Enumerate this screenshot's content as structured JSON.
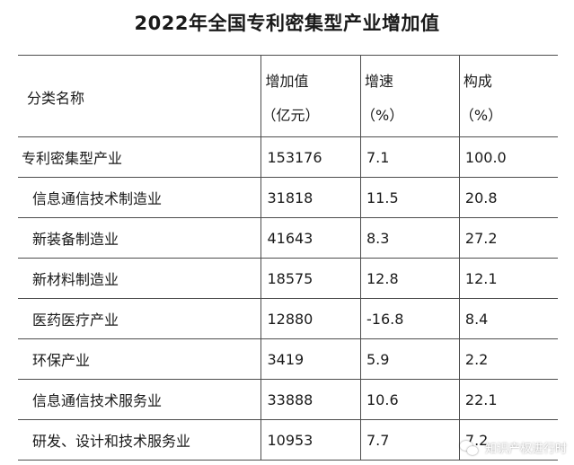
{
  "title": "2022年全国专利密集型产业增加值",
  "table": {
    "header": {
      "name": "分类名称",
      "col1": [
        "增加值",
        "（亿元）"
      ],
      "col2": [
        "增速",
        "（%）"
      ],
      "col3": [
        "构成",
        "（%）"
      ]
    },
    "rows": [
      {
        "name": "专利密集型产业",
        "value": "153176",
        "growth": "7.1",
        "share": "100.0"
      },
      {
        "name": "信息通信技术制造业",
        "value": "31818",
        "growth": "11.5",
        "share": "20.8"
      },
      {
        "name": "新装备制造业",
        "value": "41643",
        "growth": "8.3",
        "share": "27.2"
      },
      {
        "name": "新材料制造业",
        "value": "18575",
        "growth": "12.8",
        "share": "12.1"
      },
      {
        "name": "医药医疗产业",
        "value": "12880",
        "growth": "-16.8",
        "share": "8.4"
      },
      {
        "name": "环保产业",
        "value": "3419",
        "growth": "5.9",
        "share": "2.2"
      },
      {
        "name": "信息通信技术服务业",
        "value": "33888",
        "growth": "10.6",
        "share": "22.1"
      },
      {
        "name": "研发、设计和技术服务业",
        "value": "10953",
        "growth": "7.7",
        "share": "7.2"
      }
    ]
  },
  "watermark": {
    "text": "知识产权进行时",
    "icon": "wechat-icon"
  }
}
